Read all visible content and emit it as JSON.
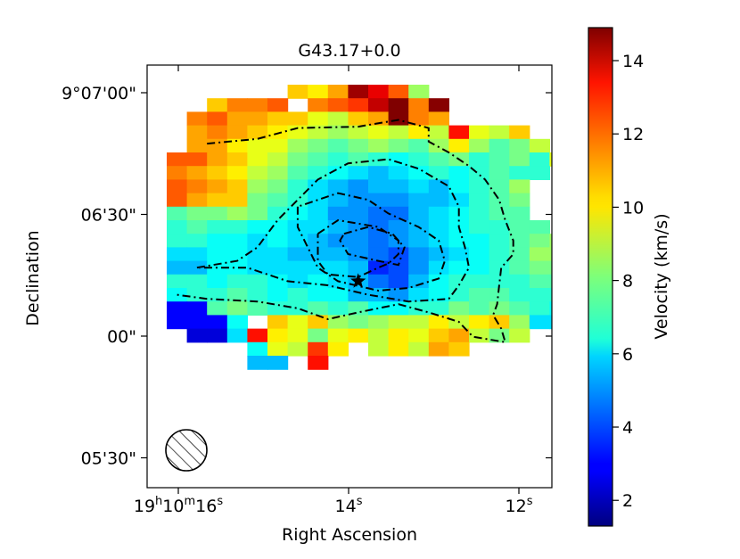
{
  "chart_data": {
    "type": "heatmap",
    "title": "G43.17+0.0",
    "xlabel": "Right Ascension",
    "ylabel": "Declination",
    "x_ticks": [
      {
        "label": "19",
        "sup1": "h",
        "label2": "10",
        "sup2": "m",
        "label3": "16",
        "sup3": "s",
        "ra_sec": 16.0
      },
      {
        "label": "14",
        "sup1": "s",
        "ra_sec": 14.0
      },
      {
        "label": "12",
        "sup1": "s",
        "ra_sec": 12.0
      }
    ],
    "y_ticks": [
      {
        "label": "9°07'00\"",
        "dec_arcsec": 60
      },
      {
        "label": "06'30\"",
        "dec_arcsec": 30
      },
      {
        "label": "00\"",
        "dec_arcsec": 0
      },
      {
        "label": "05'30\"",
        "dec_arcsec": -30
      }
    ],
    "colorbar": {
      "label": "Velocity (km/s)",
      "ticks": [
        2,
        4,
        6,
        8,
        10,
        12,
        14
      ],
      "vmin": 1.3,
      "vmax": 14.9,
      "colormap": "jet"
    },
    "star_marker": {
      "row": 14.5,
      "col": 9.5
    },
    "beam": {
      "hatched": true,
      "shape": "circle"
    },
    "grid_origin_note": "rows top-to-bottom, cols left-to-right; null = no data",
    "grid": [
      [
        null,
        null,
        null,
        null,
        null,
        null,
        10.5,
        10.0,
        11.0,
        14.5,
        13.5,
        12.0,
        8.5,
        null,
        null,
        null,
        null,
        null,
        null,
        null
      ],
      [
        null,
        null,
        10.5,
        11.5,
        11.5,
        12.0,
        null,
        11.5,
        12.0,
        12.5,
        14.0,
        14.9,
        11.5,
        14.8,
        null,
        null,
        null,
        null,
        null,
        null
      ],
      [
        null,
        11.5,
        12.0,
        11.0,
        11.0,
        10.5,
        10.5,
        9.5,
        9.0,
        10.5,
        11.0,
        14.9,
        11.5,
        11.0,
        null,
        null,
        null,
        null,
        null,
        null
      ],
      [
        null,
        11.0,
        11.5,
        11.0,
        10.5,
        10.0,
        9.5,
        9.0,
        8.5,
        9.0,
        9.5,
        9.0,
        10.0,
        9.0,
        13.0,
        9.5,
        9.0,
        10.5,
        null,
        null
      ],
      [
        null,
        11.0,
        11.0,
        10.0,
        9.5,
        9.5,
        8.5,
        8.0,
        7.5,
        8.0,
        8.5,
        8.0,
        7.5,
        8.5,
        10.0,
        8.5,
        7.5,
        8.0,
        9.0,
        null
      ],
      [
        12.0,
        12.0,
        11.0,
        10.5,
        9.5,
        9.0,
        8.0,
        7.5,
        7.0,
        7.5,
        7.0,
        6.5,
        7.0,
        7.5,
        8.0,
        7.0,
        7.5,
        8.0,
        7.0,
        9.5
      ],
      [
        11.5,
        11.0,
        10.5,
        10.0,
        9.0,
        8.5,
        7.5,
        7.0,
        6.5,
        6.0,
        5.5,
        6.0,
        6.5,
        7.0,
        6.5,
        7.0,
        7.5,
        7.0,
        7.0,
        null
      ],
      [
        12.0,
        11.5,
        11.0,
        10.5,
        8.5,
        8.0,
        7.0,
        6.0,
        5.5,
        5.0,
        5.5,
        5.5,
        6.0,
        5.5,
        6.5,
        7.0,
        7.5,
        8.5,
        null,
        null
      ],
      [
        12.0,
        11.0,
        10.5,
        10.5,
        8.0,
        7.5,
        7.0,
        6.0,
        5.5,
        5.0,
        5.0,
        5.0,
        5.5,
        5.5,
        6.0,
        7.0,
        7.5,
        8.0,
        null,
        null
      ],
      [
        7.5,
        8.0,
        8.0,
        8.5,
        8.0,
        7.0,
        6.5,
        6.0,
        5.0,
        5.0,
        4.5,
        4.5,
        5.5,
        6.0,
        6.5,
        7.0,
        7.5,
        7.5,
        null,
        null
      ],
      [
        7.0,
        7.5,
        7.0,
        7.0,
        6.5,
        6.5,
        6.0,
        6.0,
        5.5,
        5.0,
        4.5,
        5.0,
        5.5,
        6.0,
        6.5,
        7.0,
        7.0,
        7.5,
        7.5,
        null
      ],
      [
        7.0,
        7.0,
        6.5,
        6.5,
        6.0,
        6.5,
        6.0,
        5.5,
        5.0,
        5.0,
        4.5,
        5.0,
        5.5,
        6.0,
        6.5,
        6.5,
        7.0,
        7.5,
        8.0,
        8.5
      ],
      [
        6.0,
        6.0,
        6.5,
        6.5,
        6.0,
        6.0,
        5.5,
        5.5,
        5.5,
        5.0,
        4.5,
        4.0,
        5.0,
        5.5,
        6.0,
        6.5,
        7.0,
        7.5,
        8.5,
        8.5
      ],
      [
        5.5,
        5.5,
        6.5,
        6.5,
        6.0,
        6.0,
        6.0,
        6.0,
        6.0,
        5.5,
        3.5,
        4.0,
        5.0,
        6.0,
        6.5,
        6.5,
        7.0,
        7.5,
        8.0,
        8.0
      ],
      [
        7.0,
        7.0,
        6.5,
        7.0,
        7.0,
        6.5,
        6.0,
        6.5,
        6.0,
        5.5,
        4.5,
        4.0,
        5.5,
        6.5,
        7.0,
        7.0,
        7.0,
        7.0,
        7.5,
        7.5
      ],
      [
        6.5,
        7.0,
        7.0,
        7.5,
        7.0,
        6.5,
        7.0,
        6.5,
        6.5,
        5.5,
        5.5,
        5.0,
        6.0,
        6.5,
        7.0,
        7.5,
        7.5,
        7.0,
        7.0,
        7.0
      ],
      [
        3.0,
        3.0,
        7.5,
        8.0,
        7.5,
        7.0,
        7.0,
        7.5,
        7.0,
        7.5,
        6.5,
        6.5,
        7.0,
        7.0,
        8.0,
        7.5,
        8.0,
        7.5,
        7.0,
        6.5
      ],
      [
        3.0,
        3.0,
        3.0,
        6.5,
        null,
        10.5,
        9.5,
        10.5,
        8.5,
        8.0,
        8.5,
        9.0,
        9.0,
        10.0,
        9.0,
        10.0,
        10.5,
        8.5,
        6.0,
        6.0
      ],
      [
        null,
        2.5,
        2.5,
        6.0,
        13.0,
        10.0,
        9.5,
        8.0,
        9.5,
        10.0,
        9.0,
        10.0,
        9.5,
        10.5,
        11.0,
        9.0,
        8.0,
        9.0,
        null,
        null
      ],
      [
        null,
        null,
        null,
        null,
        6.5,
        9.5,
        9.0,
        12.5,
        10.0,
        null,
        9.0,
        10.0,
        9.0,
        11.0,
        10.5,
        null,
        null,
        null,
        null,
        null
      ],
      [
        null,
        null,
        null,
        null,
        5.5,
        5.5,
        null,
        13.0,
        null,
        null,
        null,
        null,
        null,
        null,
        null,
        null,
        null,
        null,
        null,
        null
      ]
    ],
    "contours": [
      [
        [
          4.35,
          2.0
        ],
        [
          4.0,
          4.5
        ],
        [
          3.2,
          6.5
        ],
        [
          3.1,
          9.5
        ],
        [
          2.6,
          11.5
        ],
        [
          3.2,
          13.0
        ],
        [
          4.2,
          13.0
        ],
        [
          5.0,
          14.0
        ],
        [
          6.0,
          15.0
        ],
        [
          7.0,
          15.8
        ],
        [
          8.5,
          16.5
        ],
        [
          10.0,
          16.8
        ],
        [
          11.5,
          17.2
        ],
        [
          12.5,
          17.2
        ],
        [
          13.5,
          16.6
        ],
        [
          14.8,
          16.5
        ],
        [
          16.2,
          16.4
        ],
        [
          17.0,
          16.2
        ],
        [
          18.0,
          16.6
        ],
        [
          19.0,
          16.8
        ],
        [
          18.6,
          15.2
        ],
        [
          17.5,
          14.5
        ],
        [
          16.8,
          13.0
        ],
        [
          16.2,
          11.5
        ],
        [
          16.8,
          9.5
        ],
        [
          17.3,
          8.0
        ],
        [
          16.5,
          6.5
        ],
        [
          16.0,
          4.5
        ],
        [
          15.8,
          2.0
        ],
        [
          15.5,
          0.5
        ]
      ],
      [
        [
          13.5,
          1.5
        ],
        [
          13.0,
          3.5
        ],
        [
          12.0,
          4.5
        ],
        [
          10.0,
          5.5
        ],
        [
          8.5,
          6.5
        ],
        [
          7.0,
          7.5
        ],
        [
          5.8,
          9.0
        ],
        [
          5.5,
          11.0
        ],
        [
          6.2,
          12.5
        ],
        [
          7.5,
          14.0
        ],
        [
          9.0,
          14.5
        ],
        [
          10.5,
          14.5
        ],
        [
          12.0,
          14.8
        ],
        [
          13.5,
          15.0
        ],
        [
          14.8,
          14.5
        ],
        [
          15.8,
          14.0
        ],
        [
          16.0,
          12.0
        ],
        [
          15.5,
          10.0
        ],
        [
          14.8,
          8.0
        ],
        [
          14.5,
          6.0
        ],
        [
          13.5,
          4.0
        ],
        [
          13.5,
          1.5
        ]
      ],
      [
        [
          9.0,
          6.5
        ],
        [
          10.5,
          6.5
        ],
        [
          12.0,
          7.0
        ],
        [
          13.5,
          7.5
        ],
        [
          14.5,
          8.5
        ],
        [
          15.2,
          10.5
        ],
        [
          15.0,
          12.0
        ],
        [
          14.3,
          13.5
        ],
        [
          13.0,
          13.8
        ],
        [
          11.5,
          13.5
        ],
        [
          10.5,
          12.5
        ],
        [
          9.5,
          11.0
        ],
        [
          8.5,
          10.0
        ],
        [
          8.0,
          8.5
        ],
        [
          9.0,
          6.5
        ]
      ],
      [
        [
          11.0,
          7.5
        ],
        [
          10.0,
          8.5
        ],
        [
          10.5,
          10.5
        ],
        [
          11.5,
          11.5
        ],
        [
          12.5,
          11.5
        ],
        [
          13.2,
          11.0
        ],
        [
          13.5,
          10.5
        ],
        [
          14.2,
          9.5
        ],
        [
          14.0,
          8.0
        ],
        [
          13.0,
          7.5
        ],
        [
          12.0,
          7.5
        ],
        [
          11.0,
          7.5
        ]
      ],
      [
        [
          11.0,
          8.8
        ],
        [
          10.5,
          10.0
        ],
        [
          11.0,
          11.2
        ],
        [
          12.0,
          11.8
        ],
        [
          13.3,
          11.5
        ],
        [
          13.0,
          10.5
        ],
        [
          12.5,
          9.0
        ],
        [
          11.5,
          8.6
        ],
        [
          11.0,
          8.8
        ]
      ]
    ]
  }
}
